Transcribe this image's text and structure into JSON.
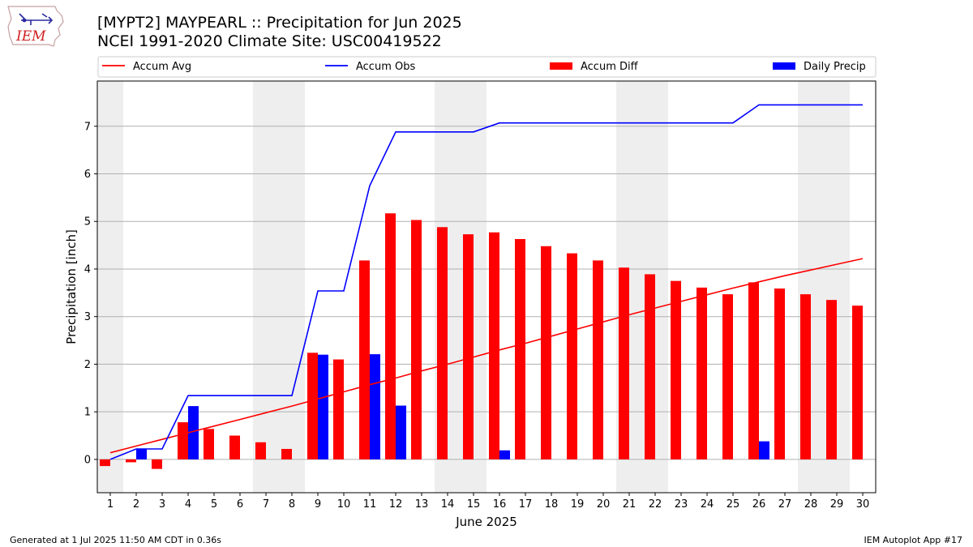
{
  "header": {
    "title_line1": "[MYPT2] MAYPEARL :: Precipitation for Jun 2025",
    "title_line2": "NCEI 1991-2020 Climate Site: USC00419522"
  },
  "logo": {
    "text": "IEM"
  },
  "footer": {
    "left": "Generated at 1 Jul 2025 11:50 AM CDT in 0.36s",
    "right": "IEM Autoplot App #17"
  },
  "colors": {
    "accum_avg": "#ff0000",
    "accum_obs": "#0000ff",
    "accum_diff": "#ff0000",
    "daily_precip": "#0000ff",
    "weekend_shade": "#eeeeee",
    "grid": "#b0b0b0"
  },
  "chart_data": {
    "type": "bar",
    "xlabel": "June 2025",
    "ylabel": "Precipitation [inch]",
    "x": [
      1,
      2,
      3,
      4,
      5,
      6,
      7,
      8,
      9,
      10,
      11,
      12,
      13,
      14,
      15,
      16,
      17,
      18,
      19,
      20,
      21,
      22,
      23,
      24,
      25,
      26,
      27,
      28,
      29,
      30
    ],
    "ylim": [
      -0.7,
      7.95
    ],
    "yticks": [
      0,
      1,
      2,
      3,
      4,
      5,
      6,
      7
    ],
    "grid": "horizontal",
    "legend_position": "top",
    "shaded_weekend_days": [
      1,
      7,
      8,
      14,
      15,
      21,
      22,
      28,
      29
    ],
    "series": [
      {
        "name": "Accum Avg",
        "type": "line",
        "values": [
          0.14,
          0.28,
          0.42,
          0.56,
          0.7,
          0.84,
          0.98,
          1.12,
          1.27,
          1.42,
          1.57,
          1.71,
          1.86,
          2.0,
          2.15,
          2.3,
          2.44,
          2.59,
          2.74,
          2.89,
          3.04,
          3.18,
          3.32,
          3.46,
          3.6,
          3.73,
          3.86,
          3.98,
          4.1,
          4.22
        ]
      },
      {
        "name": "Accum Obs",
        "type": "line",
        "values": [
          0.0,
          0.22,
          0.22,
          1.34,
          1.34,
          1.34,
          1.34,
          1.34,
          3.54,
          3.54,
          5.75,
          6.88,
          6.88,
          6.88,
          6.88,
          7.07,
          7.07,
          7.07,
          7.07,
          7.07,
          7.07,
          7.07,
          7.07,
          7.07,
          7.07,
          7.45,
          7.45,
          7.45,
          7.45,
          7.45
        ]
      },
      {
        "name": "Accum Diff",
        "type": "bar",
        "values": [
          -0.14,
          -0.06,
          -0.2,
          0.78,
          0.64,
          0.5,
          0.36,
          0.22,
          2.24,
          2.1,
          4.18,
          5.17,
          5.03,
          4.88,
          4.73,
          4.77,
          4.63,
          4.48,
          4.33,
          4.18,
          4.03,
          3.89,
          3.75,
          3.61,
          3.47,
          3.72,
          3.59,
          3.47,
          3.35,
          3.23
        ]
      },
      {
        "name": "Daily Precip",
        "type": "bar",
        "values": [
          0,
          0.22,
          0,
          1.12,
          0,
          0,
          0,
          0,
          2.2,
          0,
          2.21,
          1.13,
          0,
          0,
          0,
          0.19,
          0,
          0,
          0,
          0,
          0,
          0,
          0,
          0,
          0,
          0.38,
          0,
          0,
          0,
          0
        ]
      }
    ]
  }
}
